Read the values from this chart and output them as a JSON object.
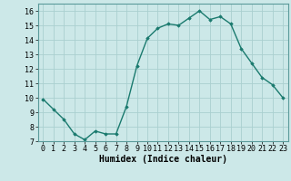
{
  "x": [
    0,
    1,
    2,
    3,
    4,
    5,
    6,
    7,
    8,
    9,
    10,
    11,
    12,
    13,
    14,
    15,
    16,
    17,
    18,
    19,
    20,
    21,
    22,
    23
  ],
  "y": [
    9.9,
    9.2,
    8.5,
    7.5,
    7.1,
    7.7,
    7.5,
    7.5,
    9.4,
    12.2,
    14.1,
    14.8,
    15.1,
    15.0,
    15.5,
    16.0,
    15.4,
    15.6,
    15.1,
    13.4,
    12.4,
    11.4,
    10.9,
    10.0
  ],
  "xlabel": "Humidex (Indice chaleur)",
  "ylim": [
    7,
    16.5
  ],
  "xlim": [
    -0.5,
    23.5
  ],
  "yticks": [
    7,
    8,
    9,
    10,
    11,
    12,
    13,
    14,
    15,
    16
  ],
  "xticks": [
    0,
    1,
    2,
    3,
    4,
    5,
    6,
    7,
    8,
    9,
    10,
    11,
    12,
    13,
    14,
    15,
    16,
    17,
    18,
    19,
    20,
    21,
    22,
    23
  ],
  "line_color": "#1a7a6e",
  "marker": "D",
  "marker_size": 1.8,
  "line_width": 1.0,
  "bg_color": "#cce8e8",
  "grid_color": "#aad0d0",
  "xlabel_fontsize": 7,
  "tick_fontsize": 6,
  "fig_width": 3.2,
  "fig_height": 2.0,
  "dpi": 100
}
